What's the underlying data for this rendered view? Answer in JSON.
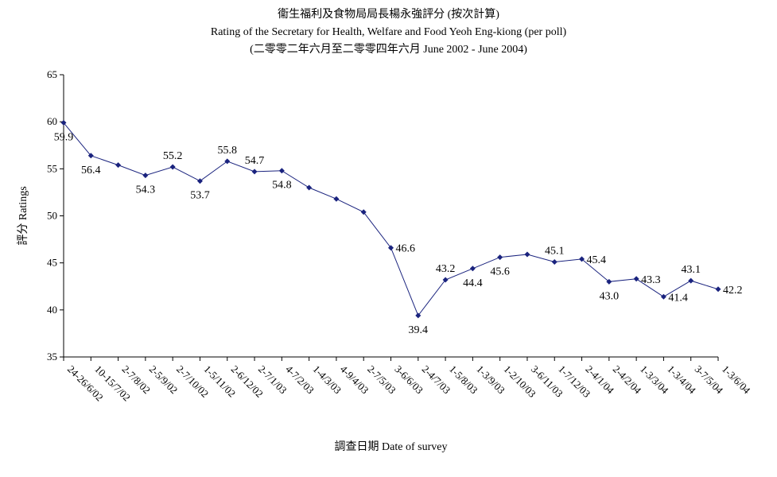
{
  "chart_data": {
    "type": "line",
    "title_zh": "衞生福利及食物局局長楊永強評分 (按次計算)",
    "title_en": "Rating of the Secretary for Health, Welfare and Food Yeoh Eng-kiong (per poll)",
    "subtitle": "(二零零二年六月至二零零四年六月 June 2002 - June 2004)",
    "xlabel": "調查日期 Date of survey",
    "ylabel": "評分 Ratings",
    "ylim": [
      35,
      65
    ],
    "yticks": [
      35,
      40,
      45,
      50,
      55,
      60,
      65
    ],
    "grid": false,
    "line_color": "#1a237e",
    "categories": [
      "24-26/6/02",
      "10-15/7/02",
      "2-7/8/02",
      "2-5/9/02",
      "2-7/10/02",
      "1-5/11/02",
      "2-6/12/02",
      "2-7/1/03",
      "4-7/2/03",
      "1-4/3/03",
      "4-9/4/03",
      "2-7/5/03",
      "3-6/6/03",
      "2-4/7/03",
      "1-5/8/03",
      "1-3/9/03",
      "1-2/10/03",
      "3-6/11/03",
      "1-7/12/03",
      "2-4/1/04",
      "2-4/2/04",
      "1-3/3/04",
      "1-3/4/04",
      "3-7/5/04",
      "1-3/6/04"
    ],
    "values": [
      59.9,
      56.4,
      55.4,
      54.3,
      55.2,
      53.7,
      55.8,
      54.7,
      54.8,
      53.0,
      51.8,
      50.4,
      46.6,
      39.4,
      43.2,
      44.4,
      45.6,
      45.9,
      45.1,
      45.4,
      43.0,
      43.3,
      41.4,
      43.1,
      42.2
    ],
    "data_labels": [
      {
        "index": 0,
        "text": "59.9",
        "pos": "below"
      },
      {
        "index": 1,
        "text": "56.4",
        "pos": "below"
      },
      {
        "index": 3,
        "text": "54.3",
        "pos": "below"
      },
      {
        "index": 4,
        "text": "55.2",
        "pos": "above"
      },
      {
        "index": 5,
        "text": "53.7",
        "pos": "below"
      },
      {
        "index": 6,
        "text": "55.8",
        "pos": "above"
      },
      {
        "index": 7,
        "text": "54.7",
        "pos": "above"
      },
      {
        "index": 8,
        "text": "54.8",
        "pos": "below"
      },
      {
        "index": 12,
        "text": "46.6",
        "pos": "right"
      },
      {
        "index": 13,
        "text": "39.4",
        "pos": "below"
      },
      {
        "index": 14,
        "text": "43.2",
        "pos": "above"
      },
      {
        "index": 15,
        "text": "44.4",
        "pos": "below"
      },
      {
        "index": 16,
        "text": "45.6",
        "pos": "below"
      },
      {
        "index": 18,
        "text": "45.1",
        "pos": "above"
      },
      {
        "index": 19,
        "text": "45.4",
        "pos": "right"
      },
      {
        "index": 20,
        "text": "43.0",
        "pos": "below"
      },
      {
        "index": 21,
        "text": "43.3",
        "pos": "right"
      },
      {
        "index": 22,
        "text": "41.4",
        "pos": "right"
      },
      {
        "index": 23,
        "text": "43.1",
        "pos": "above"
      },
      {
        "index": 24,
        "text": "42.2",
        "pos": "right"
      }
    ]
  }
}
